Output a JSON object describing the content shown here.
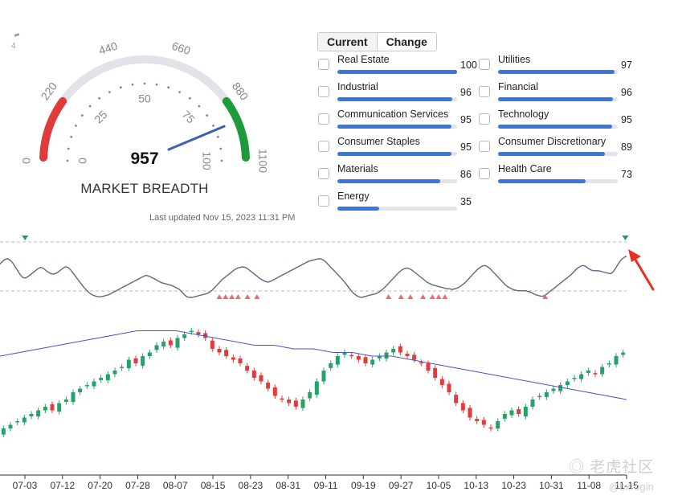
{
  "gauge": {
    "value": "957",
    "title": "MARKET BREADTH",
    "outer_ticks": [
      "0",
      "220",
      "440",
      "660",
      "880",
      "1100"
    ],
    "inner_ticks": [
      "0",
      "25",
      "50",
      "75",
      "100"
    ],
    "max": 1100,
    "reading": 957,
    "colors": {
      "low": "#e03a3a",
      "mid": "#e2e2e8",
      "high": "#1f9a3a",
      "needle": "#3f5fb5"
    }
  },
  "corner_label": "4",
  "updated": "Last updated Nov 15, 2023 11:31 PM",
  "toggle": {
    "current": "Current",
    "change": "Change"
  },
  "sectors": [
    {
      "name": "Real Estate",
      "value": "100",
      "pct": 100
    },
    {
      "name": "Utilities",
      "value": "97",
      "pct": 97
    },
    {
      "name": "Industrial",
      "value": "96",
      "pct": 96
    },
    {
      "name": "Financial",
      "value": "96",
      "pct": 96
    },
    {
      "name": "Communication Services",
      "value": "95",
      "pct": 95
    },
    {
      "name": "Technology",
      "value": "95",
      "pct": 95
    },
    {
      "name": "Consumer Staples",
      "value": "95",
      "pct": 95
    },
    {
      "name": "Consumer Discretionary",
      "value": "89",
      "pct": 89
    },
    {
      "name": "Materials",
      "value": "86",
      "pct": 86
    },
    {
      "name": "Health Care",
      "value": "73",
      "pct": 73
    },
    {
      "name": "Energy",
      "value": "35",
      "pct": 35
    }
  ],
  "colors": {
    "bar": "#3a76e0",
    "up": "#26a269",
    "down": "#e23b3b",
    "ma": "#4a52c8",
    "breadth": "#5c6a80",
    "arrow": "#e8301e"
  },
  "chart_data": [
    {
      "type": "line",
      "breadth": [
        62,
        66,
        69,
        70,
        68,
        64,
        58,
        52,
        46,
        42,
        41,
        43,
        46,
        49,
        52,
        55,
        57,
        56,
        53,
        50,
        48,
        47,
        48,
        50,
        53,
        56,
        58,
        57,
        53,
        48,
        43,
        38,
        33,
        28,
        24,
        20,
        17,
        15,
        14,
        13,
        13,
        14,
        15,
        16,
        18,
        20,
        22,
        24,
        26,
        28,
        30,
        32,
        34,
        36,
        38,
        40,
        42,
        44,
        45,
        44,
        42,
        40,
        38,
        36,
        34,
        33,
        32,
        31,
        30,
        28,
        26,
        24,
        20,
        16,
        13,
        12,
        12,
        13,
        14,
        15,
        16,
        17,
        18,
        20,
        23,
        27,
        31,
        35,
        39,
        42,
        45,
        48,
        51,
        54,
        56,
        57,
        58,
        57,
        55,
        52,
        49,
        46,
        43,
        40,
        38,
        36,
        35,
        36,
        38,
        40,
        42,
        44,
        46,
        48,
        50,
        52,
        54,
        56,
        58,
        60,
        62,
        64,
        66,
        67,
        68,
        69,
        70,
        70,
        68,
        65,
        61,
        57,
        53,
        49,
        45,
        41,
        37,
        32,
        27,
        22,
        18,
        15,
        13,
        12,
        13,
        14,
        15,
        16,
        17,
        18,
        20,
        23,
        26,
        30,
        34,
        38,
        42,
        46,
        50,
        53,
        55,
        56,
        55,
        53,
        50,
        47,
        44,
        41,
        38,
        35,
        33,
        31,
        30,
        29,
        28,
        27,
        26,
        25,
        25,
        24,
        25,
        26,
        28,
        31,
        34,
        38,
        42,
        46,
        50,
        54,
        57,
        59,
        60,
        58,
        55,
        51,
        47,
        43,
        39,
        35,
        31,
        28,
        26,
        24,
        23,
        22,
        22,
        22,
        22,
        21,
        20,
        18,
        16,
        15,
        14,
        14,
        16,
        19,
        22,
        25,
        28,
        31,
        34,
        37,
        40,
        43,
        46,
        50,
        54,
        57,
        59,
        60,
        58,
        55,
        53,
        52,
        52,
        52,
        51,
        50,
        49,
        48,
        48,
        52,
        58,
        64,
        69,
        72,
        74
      ],
      "ylim": [
        0,
        100
      ],
      "top_markers": [
        0.04,
        0.998
      ],
      "bottom_markers": [
        0.35,
        0.36,
        0.37,
        0.38,
        0.395,
        0.41,
        0.62,
        0.64,
        0.655,
        0.675,
        0.69,
        0.7,
        0.71,
        0.87
      ]
    },
    {
      "type": "candlestick",
      "x": [
        "07-03",
        "07-12",
        "07-20",
        "07-28",
        "08-07",
        "08-15",
        "08-23",
        "08-31",
        "09-11",
        "09-19",
        "09-27",
        "10-05",
        "10-13",
        "10-23",
        "10-31",
        "11-08",
        "11-15"
      ],
      "closes": [
        40,
        41,
        42,
        43,
        44,
        45,
        46,
        45,
        47,
        48,
        50,
        51,
        52,
        53,
        54,
        55,
        56,
        57,
        59,
        58,
        60,
        61,
        63,
        64,
        63,
        65,
        66,
        67,
        66,
        65,
        62,
        61,
        60,
        59,
        58,
        56,
        54,
        53,
        51,
        49,
        48,
        47,
        46,
        48,
        50,
        53,
        56,
        58,
        60,
        61,
        60,
        59,
        58,
        59,
        60,
        61,
        62,
        61,
        60,
        59,
        58,
        56,
        54,
        52,
        50,
        47,
        45,
        43,
        42,
        41,
        40,
        42,
        44,
        45,
        44,
        46,
        48,
        49,
        50,
        51,
        52,
        53,
        54,
        55,
        56,
        55,
        57,
        58,
        60,
        61
      ],
      "ma": [
        60,
        61,
        62,
        63,
        64,
        65,
        66,
        67,
        67,
        67,
        66,
        65,
        64,
        63,
        63,
        62,
        62,
        61,
        61,
        60,
        60,
        59,
        58,
        57,
        56,
        55,
        54,
        53,
        52,
        51,
        50,
        49,
        48
      ]
    }
  ]
}
